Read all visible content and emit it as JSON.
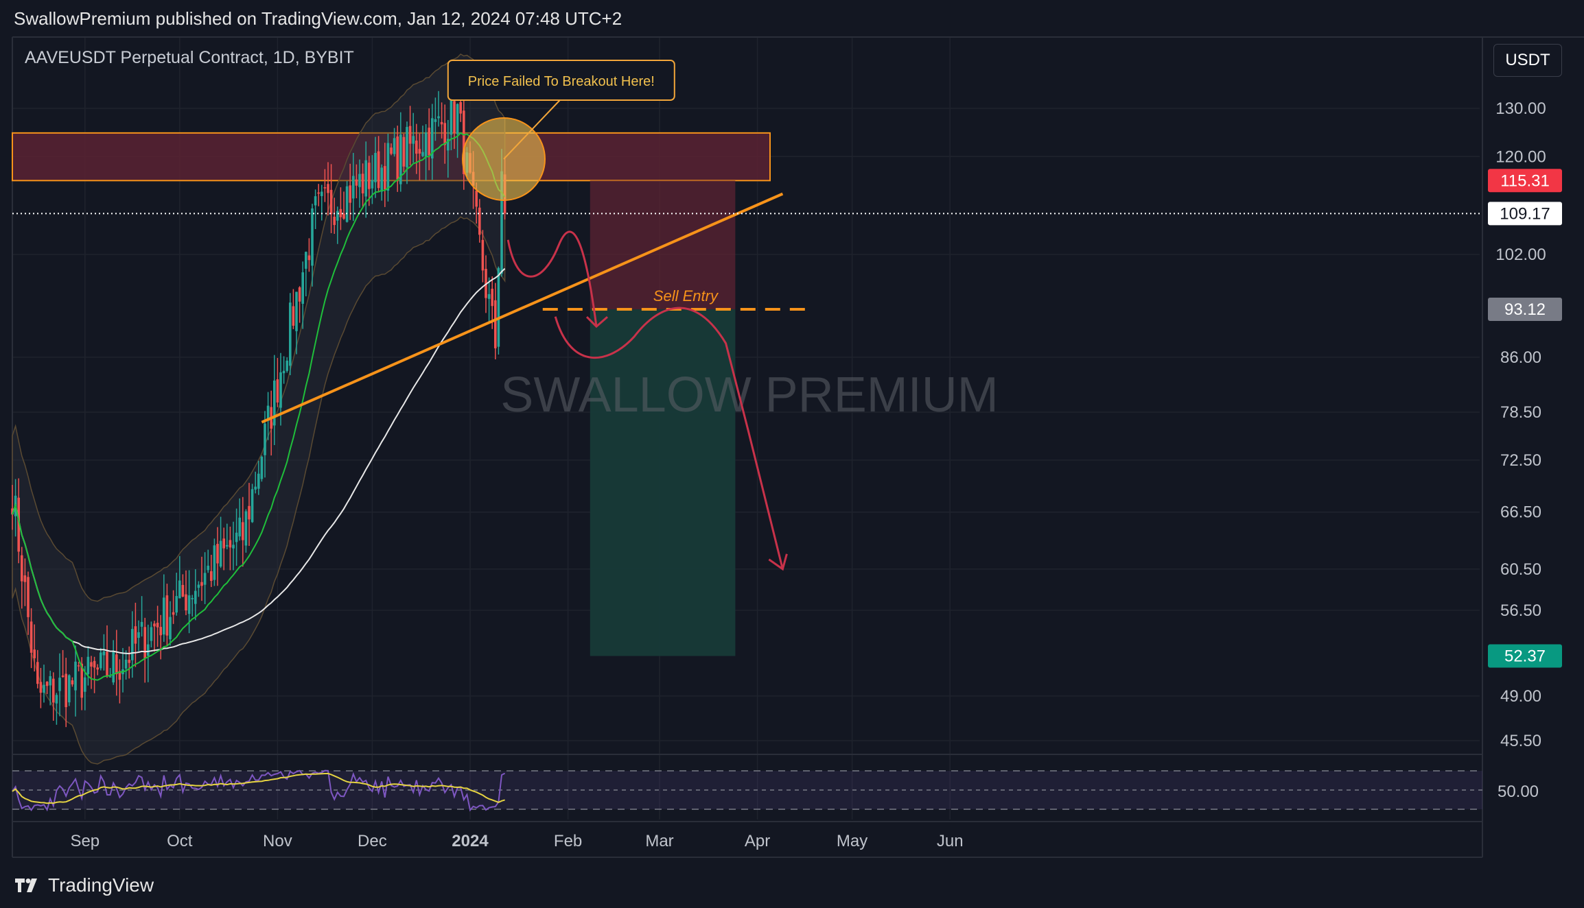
{
  "header": {
    "publisher_line": "SwallowPremium published on TradingView.com, Jan 12, 2024 07:48 UTC+2"
  },
  "chart_header": {
    "symbol_title": "AAVEUSDT Perpetual Contract, 1D, BYBIT",
    "currency": "USDT"
  },
  "footer": {
    "brand": "TradingView"
  },
  "colors": {
    "background": "#131722",
    "bull": "#26a69a",
    "bear": "#ef5350",
    "resistance_zone": "#5a2233",
    "stop_zone": "#4a2230",
    "target_zone": "#173a38",
    "trendline": "#f7931a",
    "callout": "#f2a63a",
    "projection": "#c8324a",
    "ema_green": "#1fbf3b",
    "ema_red": "#b22222",
    "ma_white": "#e8e8e8",
    "rsi": "#7e57c2",
    "rsi_ma": "#e6d442"
  },
  "annotations": {
    "callout_text": "Price Failed To Breakout Here!",
    "sell_entry_label": "Sell Entry",
    "watermark": "SWALLOW PREMIUM"
  },
  "chart_data": {
    "type": "candlestick",
    "title": "AAVEUSDT Perpetual Contract, 1D, BYBIT",
    "y_scale": "log",
    "ylim": [
      43.5,
      140
    ],
    "y_ticks": [
      "130.00",
      "120.00",
      "102.00",
      "86.00",
      "78.50",
      "72.50",
      "66.50",
      "60.50",
      "56.50",
      "49.00",
      "45.50"
    ],
    "x_ticks": [
      "Sep",
      "Oct",
      "Nov",
      "Dec",
      "2024",
      "Feb",
      "Mar",
      "Apr",
      "May",
      "Jun"
    ],
    "x_tick_dates": [
      "2023-09-01",
      "2023-10-01",
      "2023-11-01",
      "2023-12-01",
      "2024-01-01",
      "2024-02-01",
      "2024-03-01",
      "2024-04-01",
      "2024-05-01",
      "2024-06-01"
    ],
    "price_badges": [
      {
        "label": "115.31",
        "value": 115.31,
        "role": "stop",
        "color": "#f23645"
      },
      {
        "label": "109.17",
        "value": 109.17,
        "role": "last",
        "color": "#ffffff"
      },
      {
        "label": "93.12",
        "value": 93.12,
        "role": "entry",
        "color": "#787b86"
      },
      {
        "label": "52.37",
        "value": 52.37,
        "role": "target",
        "color": "#089981"
      }
    ],
    "resistance_zone": {
      "low": 115.31,
      "high": 124.8,
      "from": "2023-08-09",
      "to": "2024-04-05"
    },
    "short_position": {
      "entry": 93.12,
      "stop": 115.31,
      "target": 52.37,
      "from": "2024-02-08",
      "to": "2024-03-25"
    },
    "trendline": {
      "from": {
        "date": "2023-10-27",
        "value": 77.2
      },
      "to": {
        "date": "2024-04-09",
        "value": 112.8
      }
    },
    "current_price": 109.17,
    "key_points": [
      {
        "date": "2023-08-09",
        "value": 69
      },
      {
        "date": "2023-08-17",
        "value": 49
      },
      {
        "date": "2023-09-11",
        "value": 51.5
      },
      {
        "date": "2023-10-21",
        "value": 64
      },
      {
        "date": "2023-11-13",
        "value": 109
      },
      {
        "date": "2023-12-28",
        "value": 129
      },
      {
        "date": "2024-01-09",
        "value": 88
      },
      {
        "date": "2024-01-11",
        "value": 118
      },
      {
        "date": "2024-01-12",
        "value": 109.17
      }
    ],
    "rsi": {
      "level_mid": 50.0,
      "label": "50.00"
    }
  }
}
